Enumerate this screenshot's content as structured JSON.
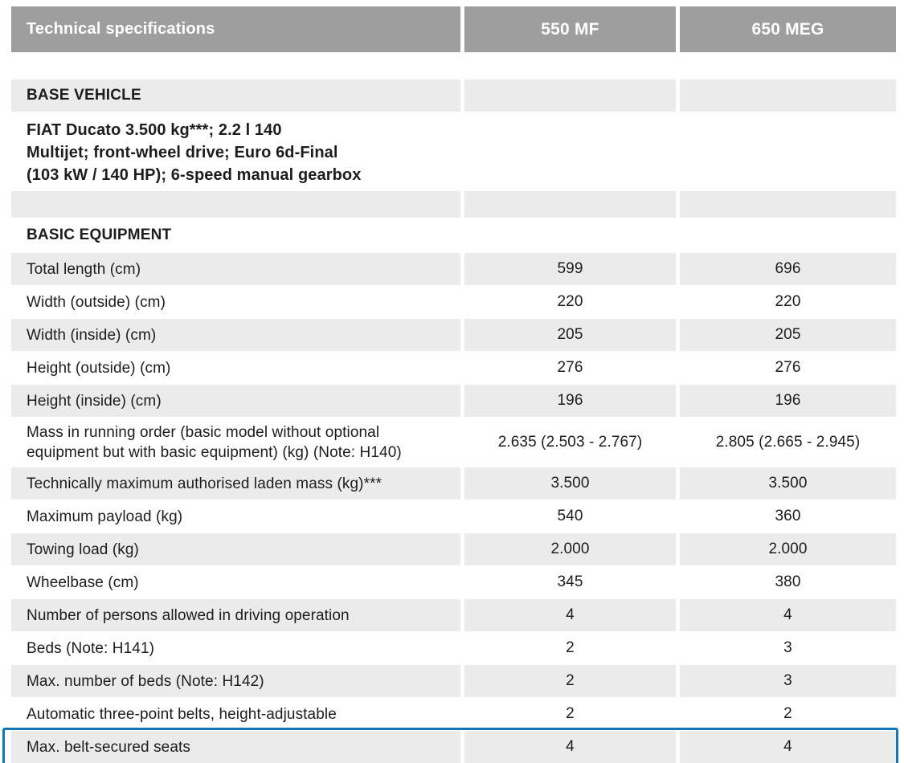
{
  "header": {
    "title": "Technical specifications",
    "model_1": "550 MF",
    "model_2": "650 MEG"
  },
  "base_vehicle": {
    "title": "BASE VEHICLE",
    "description_lines": [
      "FIAT Ducato 3.500 kg***; 2.2 l 140",
      "Multijet; front-wheel drive; Euro 6d-Final",
      "(103 kW / 140 HP); 6-speed manual gearbox"
    ]
  },
  "basic_equipment": {
    "title": "BASIC EQUIPMENT"
  },
  "rows": [
    {
      "label": "Total length (cm)",
      "model_1": "599",
      "model_2": "696",
      "shade": "gray",
      "tall": false,
      "highlight": false
    },
    {
      "label": "Width (outside) (cm)",
      "model_1": "220",
      "model_2": "220",
      "shade": "white",
      "tall": false,
      "highlight": false
    },
    {
      "label": "Width (inside) (cm)",
      "model_1": "205",
      "model_2": "205",
      "shade": "gray",
      "tall": false,
      "highlight": false
    },
    {
      "label": "Height (outside) (cm)",
      "model_1": "276",
      "model_2": "276",
      "shade": "white",
      "tall": false,
      "highlight": false
    },
    {
      "label": "Height (inside) (cm)",
      "model_1": "196",
      "model_2": "196",
      "shade": "gray",
      "tall": false,
      "highlight": false
    },
    {
      "label": "Mass in running order (basic model without optional equipment but with basic equipment) (kg) (Note: H140)",
      "model_1": "2.635 (2.503 - 2.767)",
      "model_2": "2.805 (2.665 - 2.945)",
      "shade": "white",
      "tall": true,
      "highlight": false
    },
    {
      "label": "Technically maximum authorised laden mass (kg)***",
      "model_1": "3.500",
      "model_2": "3.500",
      "shade": "gray",
      "tall": false,
      "highlight": false
    },
    {
      "label": "Maximum payload (kg)",
      "model_1": "540",
      "model_2": "360",
      "shade": "white",
      "tall": false,
      "highlight": false
    },
    {
      "label": "Towing load (kg)",
      "model_1": "2.000",
      "model_2": "2.000",
      "shade": "gray",
      "tall": false,
      "highlight": false
    },
    {
      "label": "Wheelbase (cm)",
      "model_1": "345",
      "model_2": "380",
      "shade": "white",
      "tall": false,
      "highlight": false
    },
    {
      "label": "Number of persons allowed in driving operation",
      "model_1": "4",
      "model_2": "4",
      "shade": "gray",
      "tall": false,
      "highlight": false
    },
    {
      "label": "Beds (Note: H141)",
      "model_1": "2",
      "model_2": "3",
      "shade": "white",
      "tall": false,
      "highlight": false
    },
    {
      "label": "Max. number of beds (Note: H142)",
      "model_1": "2",
      "model_2": "3",
      "shade": "gray",
      "tall": false,
      "highlight": false
    },
    {
      "label": "Automatic three-point belts, height-adjustable",
      "model_1": "2",
      "model_2": "2",
      "shade": "white",
      "tall": false,
      "highlight": false
    },
    {
      "label": "Max. belt-secured seats",
      "model_1": "4",
      "model_2": "4",
      "shade": "gray",
      "tall": false,
      "highlight": true
    }
  ],
  "colors": {
    "header_bg": "#9e9e9e",
    "header_text": "#ffffff",
    "row_bg": "#ebebeb",
    "text": "#1d1d1b",
    "highlight_border": "#1175b6"
  }
}
